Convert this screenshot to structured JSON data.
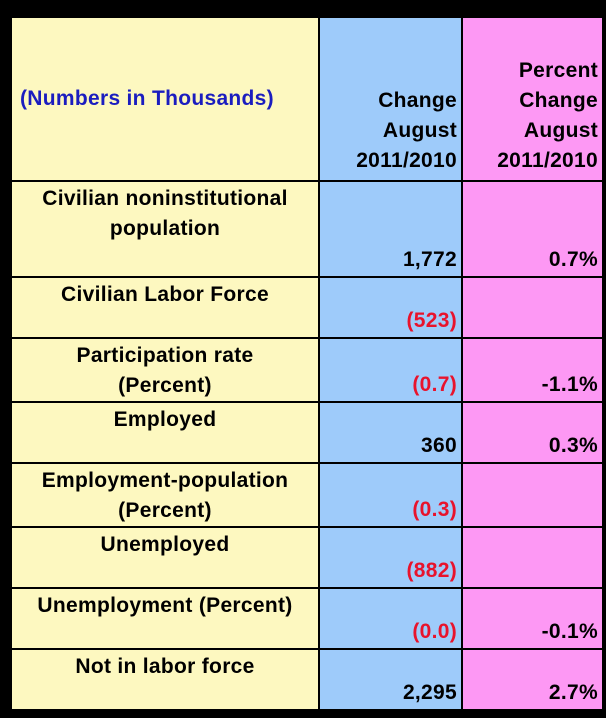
{
  "header": {
    "label": "(Numbers in Thousands)",
    "change": [
      "Change",
      "August",
      "2011/2010"
    ],
    "percent_change": [
      "Percent",
      "Change",
      "August",
      "2011/2010"
    ]
  },
  "colors": {
    "label_column": "#fdf8c0",
    "change_column": "#9ecbfa",
    "percent_column": "#fd98f4",
    "header_text": "#1b1dbf",
    "negative_text": "#e8132c"
  },
  "rows": [
    {
      "label": [
        "Civilian noninstitutional",
        "population"
      ],
      "change": "1,772",
      "change_negative": false,
      "percent": "0.7%"
    },
    {
      "label": [
        "Civilian Labor Force"
      ],
      "change": "(523)",
      "change_negative": true,
      "percent": ""
    },
    {
      "label": [
        "Participation rate",
        "(Percent)"
      ],
      "change": "(0.7)",
      "change_negative": true,
      "percent": "-1.1%"
    },
    {
      "label": [
        "Employed"
      ],
      "change": "360",
      "change_negative": false,
      "percent": "0.3%"
    },
    {
      "label": [
        "Employment-population",
        "(Percent)"
      ],
      "change": "(0.3)",
      "change_negative": true,
      "percent": ""
    },
    {
      "label": [
        "Unemployed"
      ],
      "change": "(882)",
      "change_negative": true,
      "percent": ""
    },
    {
      "label": [
        "Unemployment (Percent)"
      ],
      "change": "(0.0)",
      "change_negative": true,
      "percent": "-0.1%"
    },
    {
      "label": [
        "Not in labor force"
      ],
      "change": "2,295",
      "change_negative": false,
      "percent": "2.7%"
    }
  ]
}
